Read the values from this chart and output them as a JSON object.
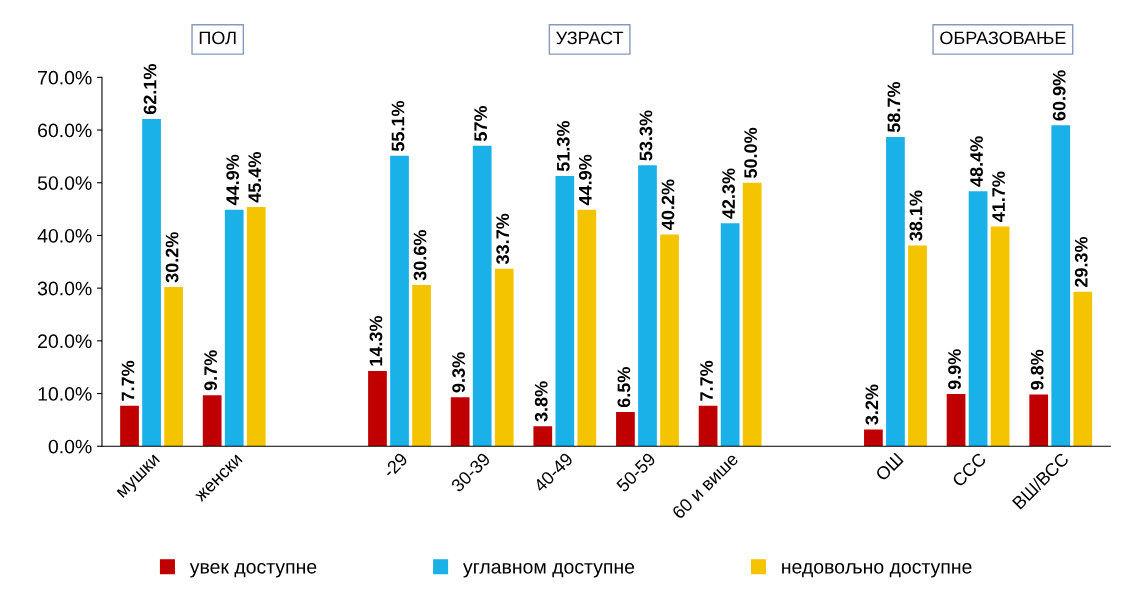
{
  "chart_data": {
    "type": "bar",
    "categories": [
      "мушки",
      "женски",
      null,
      "-29",
      "30-39",
      "40-49",
      "50-59",
      "60 и више",
      null,
      "ОШ",
      "ССС",
      "ВШ/ВСС"
    ],
    "series": [
      {
        "name": "увек доступне",
        "color": "#c00000",
        "values": [
          7.7,
          9.7,
          null,
          14.3,
          9.3,
          3.8,
          6.5,
          7.7,
          null,
          3.2,
          9.9,
          9.8
        ],
        "value_labels": [
          "7.7%",
          "9.7%",
          null,
          "14.3%",
          "9.3%",
          "3.8%",
          "6.5%",
          "7.7%",
          null,
          "3.2%",
          "9.9%",
          "9.8%"
        ]
      },
      {
        "name": "углавном доступне",
        "color": "#1ab0e8",
        "values": [
          62.1,
          44.9,
          null,
          55.1,
          57,
          51.3,
          53.3,
          42.3,
          null,
          58.7,
          48.4,
          60.9
        ],
        "value_labels": [
          "62.1%",
          "44.9%",
          null,
          "55.1%",
          "57%",
          "51.3%",
          "53.3%",
          "42.3%",
          null,
          "58.7%",
          "48.4%",
          "60.9%"
        ]
      },
      {
        "name": "недовољно доступне",
        "color": "#f5c400",
        "values": [
          30.2,
          45.4,
          null,
          30.6,
          33.7,
          44.9,
          40.2,
          50.0,
          null,
          38.1,
          41.7,
          29.3
        ],
        "value_labels": [
          "30.2%",
          "45.4%",
          null,
          "30.6%",
          "33.7%",
          "44.9%",
          "40.2%",
          "50.0%",
          null,
          "38.1%",
          "41.7%",
          "29.3%"
        ]
      }
    ],
    "ylim": [
      0,
      70
    ],
    "yticks": [
      {
        "value": 0,
        "label": "0.0%"
      },
      {
        "value": 10,
        "label": "10.0%"
      },
      {
        "value": 20,
        "label": "20.0%"
      },
      {
        "value": 30,
        "label": "30.0%"
      },
      {
        "value": 40,
        "label": "40.0%"
      },
      {
        "value": 50,
        "label": "50.0%"
      },
      {
        "value": 60,
        "label": "60.0%"
      },
      {
        "value": 70,
        "label": "70.0%"
      }
    ],
    "annotations": [
      "ПОЛ",
      "УЗРАСТ",
      "ОБРАЗОВАЊЕ"
    ],
    "legend": "bottom",
    "grid": false
  }
}
